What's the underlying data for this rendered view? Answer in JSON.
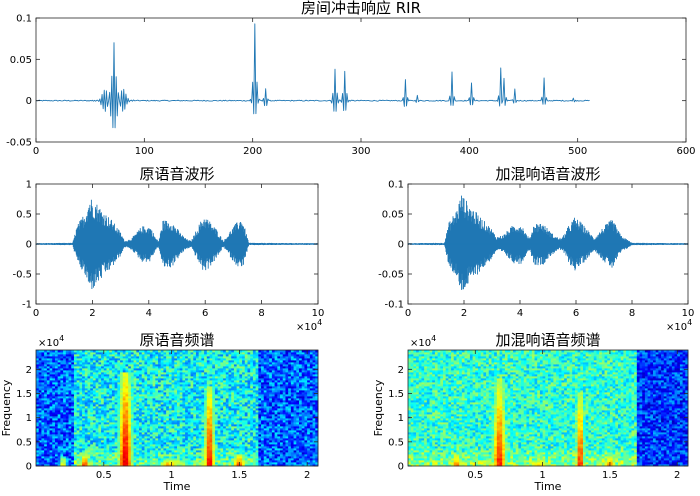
{
  "chart_data": [
    {
      "type": "line",
      "title": "房间冲击响应 RIR",
      "xlim": [
        0,
        600
      ],
      "ylim": [
        -0.05,
        0.1
      ],
      "xticks": [
        0,
        100,
        200,
        300,
        400,
        500,
        600
      ],
      "yticks": [
        -0.05,
        0,
        0.05,
        0.1
      ],
      "xtick_labels": [
        "0",
        "100",
        "200",
        "300",
        "400",
        "500",
        "600"
      ],
      "ytick_labels": [
        "-0.05",
        "0",
        "0.05",
        "0.1"
      ],
      "series": [
        {
          "name": "RIR",
          "length": 512,
          "peaks": [
            {
              "x": 72,
              "y": 0.07,
              "trough": -0.022,
              "width": 14
            },
            {
              "x": 202,
              "y": 0.093,
              "trough": -0.012,
              "width": 4
            },
            {
              "x": 212,
              "y": 0.015,
              "trough": -0.005,
              "width": 3
            },
            {
              "x": 276,
              "y": 0.038,
              "trough": -0.01,
              "width": 4
            },
            {
              "x": 285,
              "y": 0.036,
              "trough": -0.009,
              "width": 4
            },
            {
              "x": 341,
              "y": 0.026,
              "trough": -0.006,
              "width": 3
            },
            {
              "x": 352,
              "y": 0.007,
              "trough": -0.002,
              "width": 2
            },
            {
              "x": 384,
              "y": 0.035,
              "trough": -0.005,
              "width": 3
            },
            {
              "x": 402,
              "y": 0.022,
              "trough": -0.004,
              "width": 3
            },
            {
              "x": 429,
              "y": 0.04,
              "trough": -0.006,
              "width": 3
            },
            {
              "x": 432,
              "y": 0.027,
              "trough": -0.005,
              "width": 3
            },
            {
              "x": 442,
              "y": 0.014,
              "trough": -0.003,
              "width": 2
            },
            {
              "x": 469,
              "y": 0.027,
              "trough": -0.004,
              "width": 3
            },
            {
              "x": 496,
              "y": 0.003,
              "trough": -0.001,
              "width": 2
            }
          ]
        }
      ]
    },
    {
      "type": "line",
      "title": "原语音波形",
      "xlim": [
        0,
        100000
      ],
      "ylim": [
        -1,
        1
      ],
      "xticks": [
        0,
        20000,
        40000,
        60000,
        80000,
        100000
      ],
      "yticks": [
        -1,
        -0.5,
        0,
        0.5,
        1
      ],
      "xtick_labels": [
        "0",
        "2",
        "4",
        "6",
        "8",
        "10"
      ],
      "ytick_labels": [
        "-1",
        "-0.5",
        "0",
        "0.5",
        "1"
      ],
      "x_multiplier": "×10",
      "x_multiplier_exp": "4",
      "series": [
        {
          "name": "原语音",
          "envelope_x": [
            0,
            13000,
            14500,
            17500,
            19000,
            20500,
            24000,
            27000,
            30000,
            31500,
            34000,
            37500,
            40500,
            42500,
            43500,
            45000,
            48000,
            51000,
            53000,
            55000,
            57500,
            59500,
            61000,
            64000,
            66500,
            70000,
            73000,
            75500,
            100000
          ],
          "envelope_y": [
            0.015,
            0.02,
            0.3,
            0.55,
            0.8,
            0.75,
            0.55,
            0.4,
            0.2,
            0.05,
            0.1,
            0.3,
            0.3,
            0.1,
            0.05,
            0.4,
            0.4,
            0.2,
            0.1,
            0.05,
            0.3,
            0.48,
            0.42,
            0.25,
            0.05,
            0.3,
            0.45,
            0.02,
            0.015
          ]
        }
      ]
    },
    {
      "type": "line",
      "title": "加混响语音波形",
      "xlim": [
        0,
        100000
      ],
      "ylim": [
        -0.1,
        0.1
      ],
      "xticks": [
        0,
        20000,
        40000,
        60000,
        80000,
        100000
      ],
      "yticks": [
        -0.1,
        -0.05,
        0,
        0.05,
        0.1
      ],
      "xtick_labels": [
        "0",
        "2",
        "4",
        "6",
        "8",
        "10"
      ],
      "ytick_labels": [
        "-0.1",
        "-0.05",
        "0",
        "0.05",
        "0.1"
      ],
      "x_multiplier": "×10",
      "x_multiplier_exp": "4",
      "series": [
        {
          "name": "加混响语音",
          "envelope_x": [
            0,
            13000,
            14500,
            17500,
            19000,
            20500,
            24000,
            27000,
            30000,
            31500,
            34000,
            37500,
            40500,
            42500,
            43500,
            45000,
            48000,
            51000,
            53000,
            55000,
            57500,
            59500,
            61000,
            64000,
            66500,
            70000,
            73000,
            76000,
            80000,
            100000
          ],
          "envelope_y": [
            0.0015,
            0.002,
            0.035,
            0.06,
            0.085,
            0.075,
            0.055,
            0.04,
            0.025,
            0.012,
            0.015,
            0.032,
            0.034,
            0.015,
            0.01,
            0.035,
            0.036,
            0.02,
            0.012,
            0.01,
            0.032,
            0.045,
            0.04,
            0.025,
            0.01,
            0.03,
            0.042,
            0.015,
            0.002,
            0.0015
          ]
        }
      ]
    },
    {
      "type": "heatmap",
      "title": "原语音频谱",
      "xlabel": "Time",
      "ylabel": "Frequency",
      "xlim": [
        0,
        2.08
      ],
      "ylim": [
        0,
        24000
      ],
      "xticks": [
        0.5,
        1,
        1.5,
        2
      ],
      "yticks": [
        0,
        5000,
        10000,
        15000,
        20000
      ],
      "xtick_labels": [
        "0.5",
        "1",
        "1.5",
        "2"
      ],
      "ytick_labels": [
        "0",
        "0.5",
        "1",
        "1.5",
        "2"
      ],
      "y_multiplier": "×10",
      "y_multiplier_exp": "4",
      "colormap": "jet",
      "background_level": 0.38,
      "noise_amplitude": 0.14,
      "silence_floor": 0.22,
      "silence_ranges": [
        [
          0,
          0.28
        ],
        [
          1.65,
          2.08
        ]
      ],
      "bursts": [
        {
          "t": 0.66,
          "halfwidth": 0.08,
          "f_top": 19500,
          "level": 0.92
        },
        {
          "t": 1.28,
          "halfwidth": 0.06,
          "f_top": 16500,
          "level": 0.9
        },
        {
          "t": 0.36,
          "halfwidth": 0.06,
          "f_top": 2500,
          "level": 0.85
        },
        {
          "t": 0.98,
          "halfwidth": 0.12,
          "f_top": 1500,
          "level": 0.78
        },
        {
          "t": 1.5,
          "halfwidth": 0.08,
          "f_top": 2500,
          "level": 0.82
        },
        {
          "t": 0.2,
          "halfwidth": 0.04,
          "f_top": 2000,
          "level": 0.72
        }
      ],
      "gaps": [
        0.84,
        1.12,
        1.63
      ]
    },
    {
      "type": "heatmap",
      "title": "加混响语音频谱",
      "xlabel": "Time",
      "ylabel": "Frequency",
      "xlim": [
        0,
        2.08
      ],
      "ylim": [
        0,
        24000
      ],
      "xticks": [
        0.5,
        1,
        1.5,
        2
      ],
      "yticks": [
        0,
        5000,
        10000,
        15000,
        20000
      ],
      "xtick_labels": [
        "0.5",
        "1",
        "1.5",
        "2"
      ],
      "ytick_labels": [
        "0",
        "0.5",
        "1",
        "1.5",
        "2"
      ],
      "y_multiplier": "×10",
      "y_multiplier_exp": "4",
      "colormap": "jet",
      "background_level": 0.42,
      "noise_amplitude": 0.12,
      "silence_floor": 0.18,
      "silence_ranges": [
        [
          1.7,
          2.08
        ]
      ],
      "bursts": [
        {
          "t": 0.68,
          "halfwidth": 0.08,
          "f_top": 18000,
          "level": 0.86
        },
        {
          "t": 1.28,
          "halfwidth": 0.05,
          "f_top": 15500,
          "level": 0.86
        },
        {
          "t": 0.36,
          "halfwidth": 0.06,
          "f_top": 2500,
          "level": 0.8
        },
        {
          "t": 0.98,
          "halfwidth": 0.12,
          "f_top": 1500,
          "level": 0.72
        },
        {
          "t": 1.5,
          "halfwidth": 0.08,
          "f_top": 2500,
          "level": 0.76
        }
      ],
      "gaps": [
        0.84,
        1.12,
        1.62
      ]
    }
  ]
}
